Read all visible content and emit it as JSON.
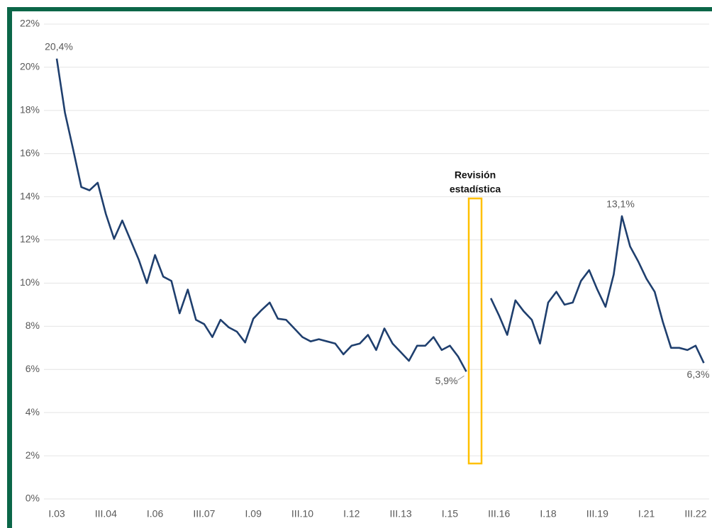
{
  "chart_data": {
    "type": "line",
    "categories": [
      "I.03",
      null,
      null,
      null,
      null,
      null,
      "III.04",
      null,
      null,
      null,
      null,
      null,
      "I.06",
      null,
      null,
      null,
      null,
      null,
      "III.07",
      null,
      null,
      null,
      null,
      null,
      "I.09",
      null,
      null,
      null,
      null,
      null,
      "III.10",
      null,
      null,
      null,
      null,
      null,
      "I.12",
      null,
      null,
      null,
      null,
      null,
      "III.13",
      null,
      null,
      null,
      null,
      null,
      "I.15",
      null,
      null,
      null,
      null,
      null,
      "III.16",
      null,
      null,
      null,
      null,
      null,
      "I.18",
      null,
      null,
      null,
      null,
      null,
      "III.19",
      null,
      null,
      null,
      null,
      null,
      "I.21",
      null,
      null,
      null,
      null,
      null,
      "III.22",
      null
    ],
    "series": [
      {
        "color": "#1f3f6e",
        "values": [
          20.4,
          17.9,
          16.2,
          14.45,
          14.3,
          14.65,
          13.2,
          12.05,
          12.9,
          12.0,
          11.1,
          10.0,
          11.3,
          10.3,
          10.1,
          8.6,
          9.7,
          8.3,
          8.1,
          7.5,
          8.3,
          7.95,
          7.75,
          7.25,
          8.35,
          8.75,
          9.1,
          8.35,
          8.3,
          7.9,
          7.5,
          7.3,
          7.4,
          7.3,
          7.2,
          6.7,
          7.1,
          7.2,
          7.6,
          6.9,
          7.9,
          7.2,
          6.8,
          6.4,
          7.1,
          7.1,
          7.5,
          6.9,
          7.1,
          6.6,
          5.9,
          null,
          null,
          9.3,
          8.5,
          7.6,
          9.2,
          8.7,
          8.3,
          7.2,
          9.1,
          9.6,
          9.0,
          9.1,
          10.1,
          10.6,
          9.7,
          8.9,
          10.4,
          13.1,
          11.7,
          11.0,
          10.2,
          9.6,
          8.2,
          7.0,
          7.0,
          6.9,
          7.1,
          6.3
        ],
        "value_labels": [
          "20,4%",
          null,
          null,
          null,
          null,
          null,
          null,
          null,
          null,
          null,
          null,
          null,
          null,
          null,
          null,
          null,
          null,
          null,
          null,
          null,
          null,
          null,
          null,
          null,
          null,
          null,
          null,
          null,
          null,
          null,
          null,
          null,
          null,
          null,
          null,
          null,
          null,
          null,
          null,
          null,
          null,
          null,
          null,
          null,
          null,
          null,
          null,
          null,
          null,
          null,
          "5,9%",
          null,
          null,
          null,
          null,
          null,
          null,
          null,
          null,
          null,
          null,
          null,
          null,
          null,
          null,
          null,
          null,
          null,
          null,
          "13,1%",
          null,
          null,
          null,
          null,
          null,
          null,
          null,
          null,
          null,
          "6,3%"
        ]
      }
    ],
    "ylim": [
      0,
      22
    ],
    "yticks": [
      {
        "value": 0,
        "label": "0%"
      },
      {
        "value": 2,
        "label": "2%"
      },
      {
        "value": 4,
        "label": "4%"
      },
      {
        "value": 6,
        "label": "6%"
      },
      {
        "value": 8,
        "label": "8%"
      },
      {
        "value": 10,
        "label": "10%"
      },
      {
        "value": 12,
        "label": "12%"
      },
      {
        "value": 14,
        "label": "14%"
      },
      {
        "value": 16,
        "label": "16%"
      },
      {
        "value": 18,
        "label": "18%"
      },
      {
        "value": 20,
        "label": "20%"
      },
      {
        "value": 22,
        "label": "22%"
      }
    ],
    "grid": true,
    "annotation": {
      "lines": [
        "Revisión",
        "estadística"
      ],
      "color": "#ffc000"
    }
  }
}
